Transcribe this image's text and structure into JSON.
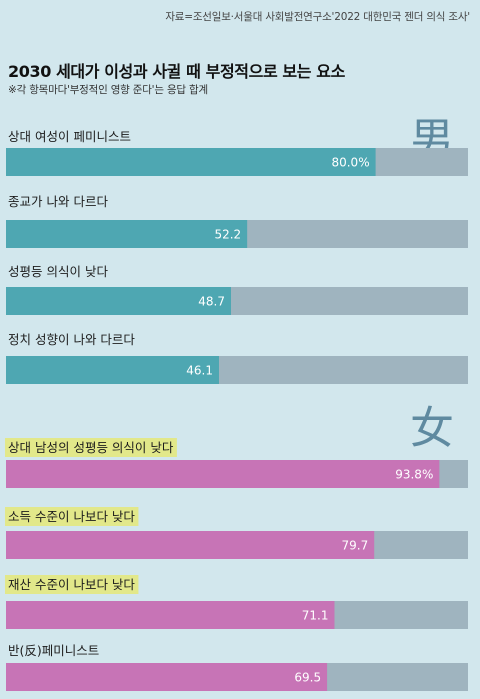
{
  "source": "자료=조선일보·서울대 사회발전연구소'2022 대한민국 젠더 의식 조사'",
  "title": "2030 세대가 이성과 사귈 때 부정적으로 보는 요소",
  "subtitle": "※각 항목마다'부정적인 영향 준다'는 응답 합계",
  "colors": {
    "background": "#d2e7ed",
    "male_bar": "#4ea7b2",
    "female_bar": "#c774b6",
    "track": "#9fb4bf",
    "highlight": "#e2e88a"
  },
  "chart_data": [
    {
      "type": "bar",
      "group_label": "男",
      "categories": [
        "상대 여성이 페미니스트",
        "종교가 나와 다르다",
        "성평등 의식이 낮다",
        "정치 성향이 나와 다르다"
      ],
      "values": [
        80.0,
        52.2,
        48.7,
        46.1
      ],
      "value_labels": [
        "80.0%",
        "52.2",
        "48.7",
        "46.1"
      ],
      "highlighted": [
        false,
        false,
        false,
        false
      ],
      "xlim": [
        0,
        100
      ]
    },
    {
      "type": "bar",
      "group_label": "女",
      "categories": [
        "상대 남성의 성평등 의식이 낮다",
        "소득 수준이 나보다 낮다",
        "재산 수준이 나보다 낮다",
        "반(反)페미니스트"
      ],
      "values": [
        93.8,
        79.7,
        71.1,
        69.5
      ],
      "value_labels": [
        "93.8%",
        "79.7",
        "71.1",
        "69.5"
      ],
      "highlighted": [
        true,
        true,
        true,
        false
      ],
      "xlim": [
        0,
        100
      ]
    }
  ]
}
